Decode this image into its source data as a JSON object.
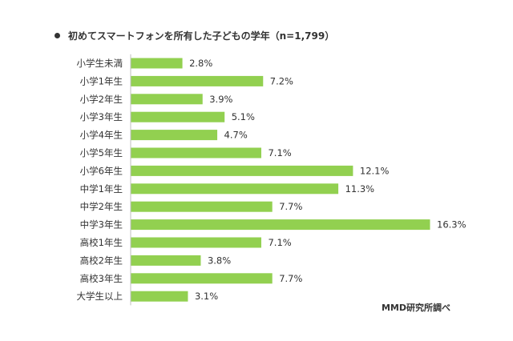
{
  "title": "初めてスマートフォンを所有した子どもの学年（n=1,799）",
  "source": "MMD研究所調べ",
  "colors": {
    "bar": "#92d050",
    "axis": "#bfbfbf",
    "text": "#333333"
  },
  "chart_data": {
    "type": "bar",
    "orientation": "horizontal",
    "title": "初めてスマートフォンを所有した子どもの学年（n=1,799）",
    "categories": [
      "小学生未満",
      "小学1年生",
      "小学2年生",
      "小学3年生",
      "小学4年生",
      "小学5年生",
      "小学6年生",
      "中学1年生",
      "中学2年生",
      "中学3年生",
      "高校1年生",
      "高校2年生",
      "高校3年生",
      "大学生以上"
    ],
    "values": [
      2.8,
      7.2,
      3.9,
      5.1,
      4.7,
      7.1,
      12.1,
      11.3,
      7.7,
      16.3,
      7.1,
      3.8,
      7.7,
      3.1
    ],
    "value_labels": [
      "2.8%",
      "7.2%",
      "3.9%",
      "5.1%",
      "4.7%",
      "7.1%",
      "12.1%",
      "11.3%",
      "7.7%",
      "16.3%",
      "7.1%",
      "3.8%",
      "7.7%",
      "3.1%"
    ],
    "unit": "%",
    "xlim": [
      0,
      16.3
    ],
    "grid": false,
    "legend": "none"
  }
}
